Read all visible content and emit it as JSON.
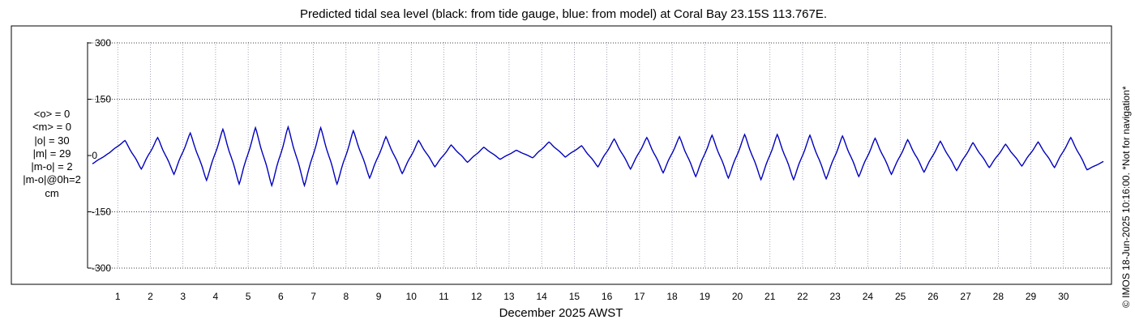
{
  "chart_data": {
    "type": "line",
    "title": "Predicted tidal sea level (black: from tide gauge, blue: from model) at Coral Bay 23.15S 113.767E.",
    "xlabel": "December 2025 AWST",
    "ylabel": "",
    "ylim": [
      -320,
      320
    ],
    "xlim": [
      0,
      31
    ],
    "yticks": [
      300,
      150,
      0,
      -150,
      -300
    ],
    "ytick_labels": [
      "300",
      "150",
      "0",
      "-150",
      "-300"
    ],
    "xticks": [
      1,
      2,
      3,
      4,
      5,
      6,
      7,
      8,
      9,
      10,
      11,
      12,
      13,
      14,
      15,
      16,
      17,
      18,
      19,
      20,
      21,
      22,
      23,
      24,
      25,
      26,
      27,
      28,
      29,
      30
    ],
    "xtick_labels": [
      "1",
      "2",
      "3",
      "4",
      "5",
      "6",
      "7",
      "8",
      "9",
      "10",
      "11",
      "12",
      "13",
      "14",
      "15",
      "16",
      "17",
      "18",
      "19",
      "20",
      "21",
      "22",
      "23",
      "24",
      "25",
      "26",
      "27",
      "28",
      "29",
      "30"
    ],
    "grid": true,
    "series": [
      {
        "name": "tide gauge",
        "color": "#000000",
        "x": [
          0,
          0.5,
          1,
          1.5,
          2,
          2.5,
          3,
          3.5,
          4,
          4.5,
          5,
          5.5,
          6,
          6.5,
          7,
          7.5,
          8,
          8.5,
          9,
          9.5,
          10,
          10.5,
          11,
          11.5,
          12,
          12.5,
          13,
          13.5,
          14,
          14.5,
          15,
          15.5,
          16,
          16.5,
          17,
          17.5,
          18,
          18.5,
          19,
          19.5,
          20,
          20.5,
          21,
          21.5,
          22,
          22.5,
          23,
          23.5,
          24,
          24.5,
          25,
          25.5,
          26,
          26.5,
          27,
          27.5,
          28,
          28.5,
          29,
          29.5,
          30,
          30.5,
          31
        ],
        "y": [
          -22,
          6,
          40,
          -36,
          48,
          -50,
          60,
          -66,
          70,
          -76,
          74,
          -80,
          76,
          -80,
          74,
          -76,
          66,
          -60,
          50,
          -48,
          40,
          -30,
          28,
          -18,
          22,
          -10,
          14,
          -6,
          36,
          -4,
          26,
          -30,
          44,
          -36,
          48,
          -46,
          50,
          -56,
          54,
          -60,
          56,
          -64,
          56,
          -64,
          54,
          -62,
          52,
          -56,
          46,
          -50,
          42,
          -44,
          38,
          -40,
          34,
          -32,
          30,
          -28,
          36,
          -32,
          48,
          -38,
          -16
        ]
      },
      {
        "name": "model",
        "color": "#0000c8",
        "x": [
          0,
          0.5,
          1,
          1.5,
          2,
          2.5,
          3,
          3.5,
          4,
          4.5,
          5,
          5.5,
          6,
          6.5,
          7,
          7.5,
          8,
          8.5,
          9,
          9.5,
          10,
          10.5,
          11,
          11.5,
          12,
          12.5,
          13,
          13.5,
          14,
          14.5,
          15,
          15.5,
          16,
          16.5,
          17,
          17.5,
          18,
          18.5,
          19,
          19.5,
          20,
          20.5,
          21,
          21.5,
          22,
          22.5,
          23,
          23.5,
          24,
          24.5,
          25,
          25.5,
          26,
          26.5,
          27,
          27.5,
          28,
          28.5,
          29,
          29.5,
          30,
          30.5,
          31
        ],
        "y": [
          -22,
          6,
          40,
          -36,
          48,
          -50,
          60,
          -66,
          70,
          -76,
          74,
          -80,
          76,
          -80,
          74,
          -76,
          66,
          -60,
          50,
          -48,
          40,
          -30,
          28,
          -18,
          22,
          -10,
          14,
          -6,
          36,
          -4,
          26,
          -30,
          44,
          -36,
          48,
          -46,
          50,
          -56,
          54,
          -60,
          56,
          -64,
          56,
          -64,
          54,
          -62,
          52,
          -56,
          46,
          -50,
          42,
          -44,
          38,
          -40,
          34,
          -32,
          30,
          -28,
          36,
          -32,
          48,
          -38,
          -16
        ]
      }
    ],
    "colors": {
      "grid": "#8080a0",
      "frame": "#000000"
    }
  },
  "stats": {
    "lines": [
      "<o> = 0",
      "<m> = 0",
      "|o| = 30",
      "|m| = 29",
      "|m-o| = 2",
      "|m-o|@0h=2",
      "cm"
    ]
  },
  "credit": "© IMOS 18-Jun-2025 10:16:00. *Not for navigation*"
}
